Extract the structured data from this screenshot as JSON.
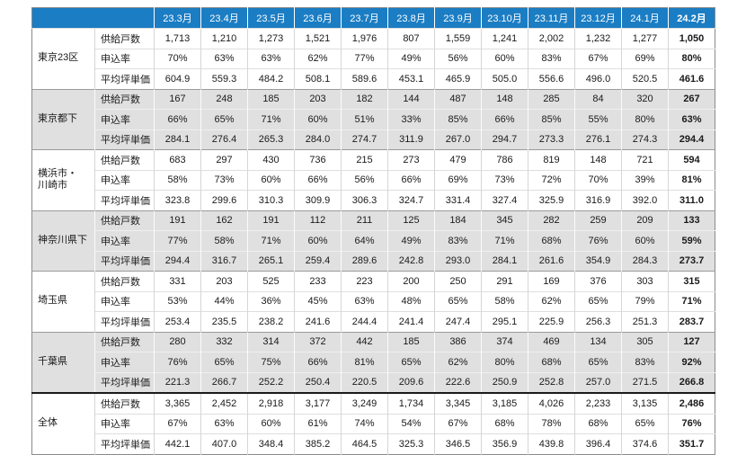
{
  "chart_data": {
    "type": "table",
    "columns": [
      "23.3月",
      "23.4月",
      "23.5月",
      "23.6月",
      "23.7月",
      "23.8月",
      "23.9月",
      "23.10月",
      "23.11月",
      "23.12月",
      "24.1月",
      "24.2月"
    ],
    "groups": [
      {
        "region": "東京23区",
        "shaded": false,
        "metrics": [
          {
            "label": "供給戸数",
            "values": [
              "1,713",
              "1,210",
              "1,273",
              "1,521",
              "1,976",
              "807",
              "1,559",
              "1,241",
              "2,002",
              "1,232",
              "1,277",
              "1,050"
            ]
          },
          {
            "label": "申込率",
            "values": [
              "70%",
              "63%",
              "63%",
              "62%",
              "77%",
              "49%",
              "56%",
              "60%",
              "83%",
              "67%",
              "69%",
              "80%"
            ]
          },
          {
            "label": "平均坪単価",
            "values": [
              "604.9",
              "559.3",
              "484.2",
              "508.1",
              "589.6",
              "453.1",
              "465.9",
              "505.0",
              "556.6",
              "496.0",
              "520.5",
              "461.6"
            ]
          }
        ]
      },
      {
        "region": "東京都下",
        "shaded": true,
        "metrics": [
          {
            "label": "供給戸数",
            "values": [
              "167",
              "248",
              "185",
              "203",
              "182",
              "144",
              "487",
              "148",
              "285",
              "84",
              "320",
              "267"
            ]
          },
          {
            "label": "申込率",
            "values": [
              "66%",
              "65%",
              "71%",
              "60%",
              "51%",
              "33%",
              "85%",
              "66%",
              "85%",
              "55%",
              "80%",
              "63%"
            ]
          },
          {
            "label": "平均坪単価",
            "values": [
              "284.1",
              "276.4",
              "265.3",
              "284.0",
              "274.7",
              "311.9",
              "267.0",
              "294.7",
              "273.3",
              "276.1",
              "274.3",
              "294.4"
            ]
          }
        ]
      },
      {
        "region": "横浜市・\n川崎市",
        "shaded": false,
        "metrics": [
          {
            "label": "供給戸数",
            "values": [
              "683",
              "297",
              "430",
              "736",
              "215",
              "273",
              "479",
              "786",
              "819",
              "148",
              "721",
              "594"
            ]
          },
          {
            "label": "申込率",
            "values": [
              "58%",
              "73%",
              "60%",
              "66%",
              "56%",
              "66%",
              "69%",
              "73%",
              "72%",
              "70%",
              "39%",
              "81%"
            ]
          },
          {
            "label": "平均坪単価",
            "values": [
              "323.8",
              "299.6",
              "310.3",
              "309.9",
              "306.3",
              "324.7",
              "331.4",
              "327.4",
              "325.9",
              "316.9",
              "392.0",
              "311.0"
            ]
          }
        ]
      },
      {
        "region": "神奈川県下",
        "shaded": true,
        "metrics": [
          {
            "label": "供給戸数",
            "values": [
              "191",
              "162",
              "191",
              "112",
              "211",
              "125",
              "184",
              "345",
              "282",
              "259",
              "209",
              "133"
            ]
          },
          {
            "label": "申込率",
            "values": [
              "77%",
              "58%",
              "71%",
              "60%",
              "64%",
              "49%",
              "83%",
              "71%",
              "68%",
              "76%",
              "60%",
              "59%"
            ]
          },
          {
            "label": "平均坪単価",
            "values": [
              "294.4",
              "316.7",
              "265.1",
              "259.4",
              "289.6",
              "242.8",
              "293.0",
              "284.1",
              "261.6",
              "354.9",
              "284.3",
              "273.7"
            ]
          }
        ]
      },
      {
        "region": "埼玉県",
        "shaded": false,
        "metrics": [
          {
            "label": "供給戸数",
            "values": [
              "331",
              "203",
              "525",
              "233",
              "223",
              "200",
              "250",
              "291",
              "169",
              "376",
              "303",
              "315"
            ]
          },
          {
            "label": "申込率",
            "values": [
              "53%",
              "44%",
              "36%",
              "45%",
              "63%",
              "48%",
              "65%",
              "58%",
              "62%",
              "65%",
              "79%",
              "71%"
            ]
          },
          {
            "label": "平均坪単価",
            "values": [
              "253.4",
              "235.5",
              "238.2",
              "241.6",
              "244.4",
              "241.4",
              "247.4",
              "295.1",
              "225.9",
              "256.3",
              "251.3",
              "283.7"
            ]
          }
        ]
      },
      {
        "region": "千葉県",
        "shaded": true,
        "metrics": [
          {
            "label": "供給戸数",
            "values": [
              "280",
              "332",
              "314",
              "372",
              "442",
              "185",
              "386",
              "374",
              "469",
              "134",
              "305",
              "127"
            ]
          },
          {
            "label": "申込率",
            "values": [
              "76%",
              "65%",
              "75%",
              "66%",
              "81%",
              "65%",
              "62%",
              "80%",
              "68%",
              "65%",
              "83%",
              "92%"
            ]
          },
          {
            "label": "平均坪単価",
            "values": [
              "221.3",
              "266.7",
              "252.2",
              "250.4",
              "220.5",
              "209.6",
              "222.6",
              "250.9",
              "252.8",
              "257.0",
              "271.5",
              "266.8"
            ]
          }
        ]
      },
      {
        "region": "全体",
        "shaded": false,
        "metrics": [
          {
            "label": "供給戸数",
            "values": [
              "3,365",
              "2,452",
              "2,918",
              "3,177",
              "3,249",
              "1,734",
              "3,345",
              "3,185",
              "4,026",
              "2,233",
              "3,135",
              "2,486"
            ]
          },
          {
            "label": "申込率",
            "values": [
              "67%",
              "63%",
              "60%",
              "61%",
              "74%",
              "54%",
              "67%",
              "68%",
              "78%",
              "68%",
              "65%",
              "76%"
            ]
          },
          {
            "label": "平均坪単価",
            "values": [
              "442.1",
              "407.0",
              "348.4",
              "385.2",
              "464.5",
              "325.3",
              "346.5",
              "356.9",
              "439.8",
              "396.4",
              "374.6",
              "351.7"
            ]
          }
        ]
      }
    ]
  },
  "colors": {
    "header_bg": "#1b7dc3",
    "header_text": "#ffffff",
    "shaded_row_bg": "#e0e0e0",
    "group_divider": "#9a9a9a",
    "total_divider": "#1a1a1a"
  }
}
